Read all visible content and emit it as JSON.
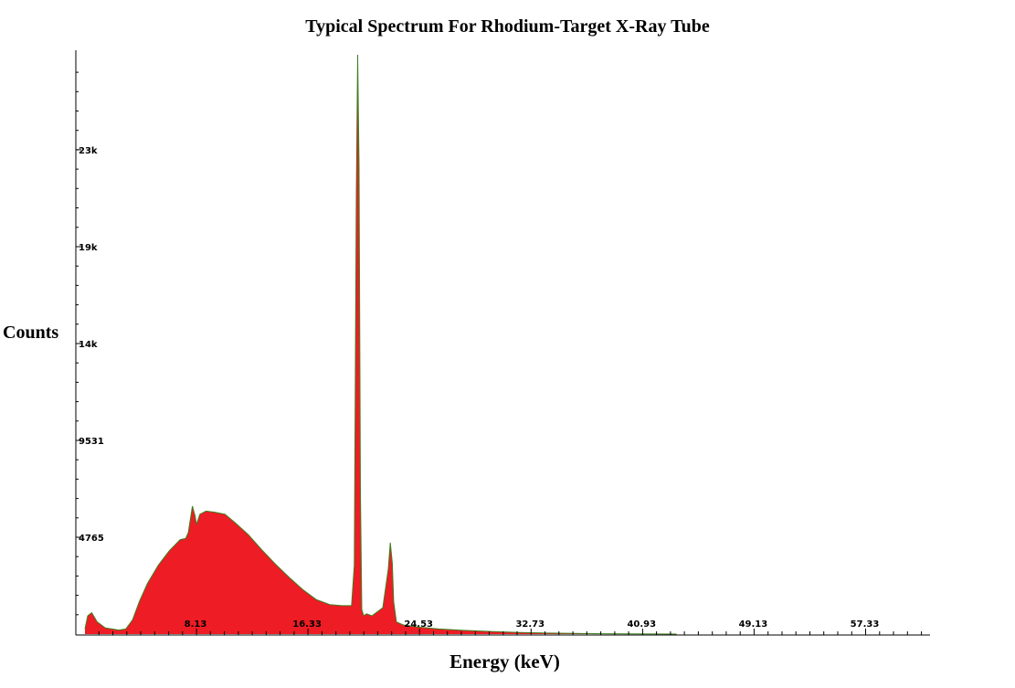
{
  "chart_data": {
    "type": "area",
    "title": "Typical Spectrum For Rhodium-Target X-Ray Tube",
    "xlabel": "Energy (keV)",
    "ylabel": "Counts",
    "xlim": [
      0,
      62
    ],
    "ylim": [
      0,
      28500
    ],
    "x_ticks": [
      "8.13",
      "16.33",
      "24.53",
      "32.73",
      "40.93",
      "49.13",
      "57.33"
    ],
    "y_ticks": [
      "4765",
      "9531",
      "14k",
      "19k",
      "23k"
    ],
    "grid": false,
    "colors": {
      "fill": "#ee1c24",
      "edge": "#3f7f1f",
      "axis": "#000000"
    },
    "series": [
      {
        "x": [
          0,
          0.2,
          0.5,
          0.9,
          1.5,
          2.5,
          3.0,
          3.5,
          4.0,
          4.6,
          5.4,
          6.2,
          7.0,
          7.4,
          7.6,
          7.9,
          8.1,
          8.2,
          8.45,
          8.9,
          9.5,
          10.3,
          11.0,
          12.0,
          13.0,
          14.0,
          15.0,
          16.0,
          17.0,
          18.0,
          18.9,
          19.6,
          19.8,
          19.95,
          20.05,
          20.15,
          20.25,
          20.35,
          20.5,
          20.7,
          21.1,
          21.9,
          22.3,
          22.45,
          22.6,
          22.7,
          22.9,
          23.4,
          24.5,
          26.0,
          28.0,
          30.0,
          32.0,
          34.0,
          36.0,
          38.0,
          40.0,
          42.0,
          43.5
        ],
        "y": [
          250,
          900,
          1050,
          600,
          300,
          200,
          250,
          700,
          1600,
          2500,
          3400,
          4100,
          4650,
          4700,
          5000,
          6300,
          5800,
          5400,
          5900,
          6050,
          6000,
          5900,
          5500,
          4900,
          4150,
          3450,
          2800,
          2200,
          1700,
          1450,
          1400,
          1400,
          3400,
          21500,
          28500,
          23000,
          7000,
          1200,
          900,
          1000,
          900,
          1300,
          3200,
          4500,
          3500,
          1600,
          600,
          450,
          350,
          250,
          180,
          120,
          80,
          50,
          30,
          20,
          12,
          5,
          0
        ]
      }
    ]
  }
}
